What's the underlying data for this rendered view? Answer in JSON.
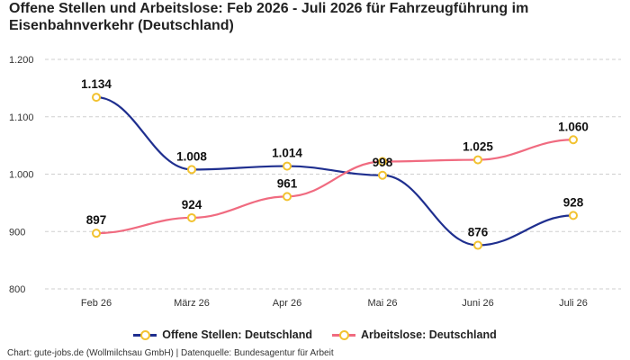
{
  "chart_data": {
    "type": "line",
    "title": "Offene Stellen und Arbeitslose: Feb 2026 - Juli 2026 für Fahrzeugführung im Eisenbahnverkehr (Deutschland)",
    "categories": [
      "Feb 26",
      "März 26",
      "Apr 26",
      "Mai 26",
      "Juni 26",
      "Juli 26"
    ],
    "series": [
      {
        "name": "Offene Stellen: Deutschland",
        "color": "#1f2f8f",
        "values": [
          1134,
          1008,
          1014,
          998,
          876,
          928
        ],
        "labels": [
          "1.134",
          "1.008",
          "1.014",
          "998",
          "876",
          "928"
        ]
      },
      {
        "name": "Arbeitslose: Deutschland",
        "color": "#f06b80",
        "values": [
          897,
          924,
          961,
          1022,
          1025,
          1060
        ],
        "labels": [
          "897",
          "924",
          "961",
          "",
          "1.025",
          "1.060"
        ]
      }
    ],
    "ylim": [
      800,
      1200
    ],
    "yticks": [
      800,
      900,
      1000,
      1100,
      1200
    ],
    "ytick_labels": [
      "800",
      "900",
      "1.000",
      "1.100",
      "1.200"
    ],
    "marker_color": "#f2c230",
    "grid": true,
    "legend_position": "bottom"
  },
  "footer": "Chart: gute-jobs.de (Wollmilchsau GmbH) | Datenquelle: Bundesagentur für Arbeit"
}
